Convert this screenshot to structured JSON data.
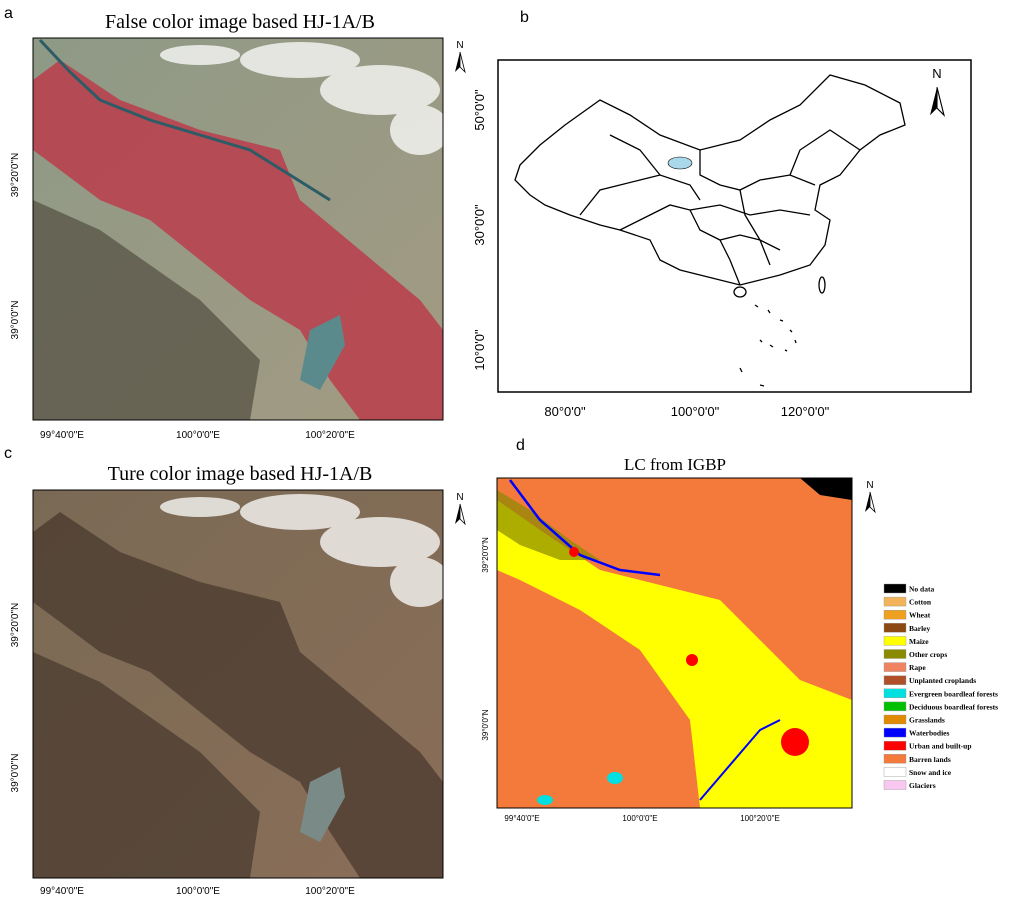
{
  "panels": [
    {
      "label": "a",
      "title": "False color image based HJ-1A/B",
      "lat_labels": [
        "39°20'0\"N",
        "39°0'0\"N"
      ],
      "lon_labels": [
        "99°40'0\"E",
        "100°0'0\"E",
        "100°20'0\"E"
      ],
      "north": "N"
    },
    {
      "label": "b",
      "lat_labels": [
        "50°0'0\"",
        "30°0'0\"",
        "10°0'0\""
      ],
      "lon_labels": [
        "80°0'0\"",
        "100°0'0\"",
        "120°0'0\""
      ],
      "north": "N"
    },
    {
      "label": "c",
      "title": "Ture color image based HJ-1A/B",
      "lat_labels": [
        "39°20'0\"N",
        "39°0'0\"N"
      ],
      "lon_labels": [
        "99°40'0\"E",
        "100°0'0\"E",
        "100°20'0\"E"
      ],
      "north": "N"
    },
    {
      "label": "d",
      "title": "LC from IGBP",
      "lat_labels": [
        "39°20'0\"N",
        "39°0'0\"N"
      ],
      "lon_labels": [
        "99°40'0\"E",
        "100°0'0\"E",
        "100°20'0\"E"
      ],
      "north": "N"
    }
  ],
  "legend": {
    "items": [
      {
        "name": "No data",
        "color": "#000000"
      },
      {
        "name": "Cotton",
        "color": "#f3b35a"
      },
      {
        "name": "Wheat",
        "color": "#f0a020"
      },
      {
        "name": "Barley",
        "color": "#8b4a14"
      },
      {
        "name": "Maize",
        "color": "#ffff00"
      },
      {
        "name": "Other crops",
        "color": "#8a8a00"
      },
      {
        "name": "Rape",
        "color": "#f08462"
      },
      {
        "name": "Unplanted croplands",
        "color": "#b0502a"
      },
      {
        "name": "Evergreen boardleaf forests",
        "color": "#00e0e0"
      },
      {
        "name": "Deciduous boardleaf forests",
        "color": "#00c000"
      },
      {
        "name": "Grasslands",
        "color": "#e08a00"
      },
      {
        "name": "Waterbodies",
        "color": "#0000ff"
      },
      {
        "name": "Urban and built-up",
        "color": "#ff0000"
      },
      {
        "name": "Barren lands",
        "color": "#f47a3c"
      },
      {
        "name": "Snow and ice",
        "color": "#ffffff"
      },
      {
        "name": "Glaciers",
        "color": "#f8c8f0"
      }
    ]
  }
}
